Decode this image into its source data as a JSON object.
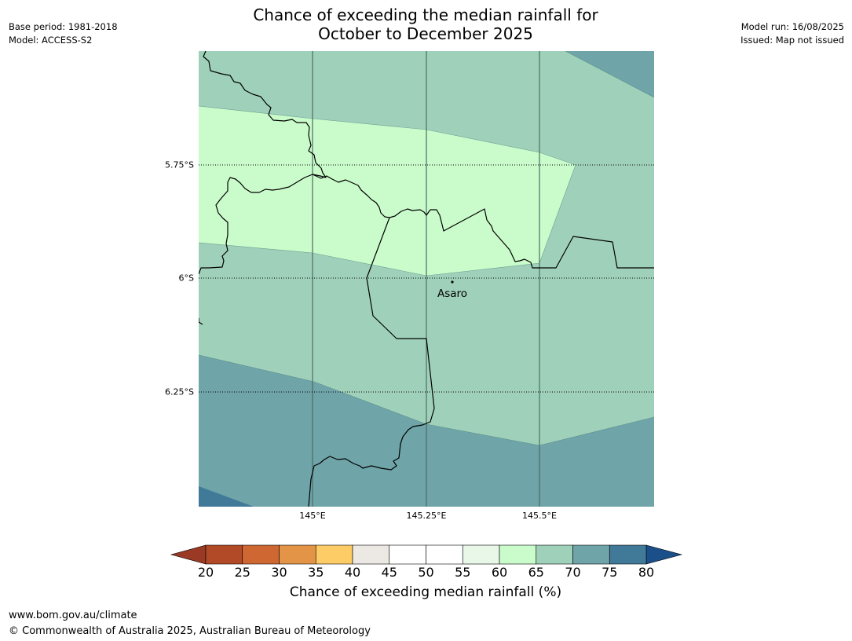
{
  "header": {
    "title_line1": "Chance of exceeding the median rainfall for",
    "title_line2": "October to December 2025",
    "base_period": "Base period: 1981-2018",
    "model": "Model: ACCESS-S2",
    "model_run": "Model run: 16/08/2025",
    "issued": "Issued: Map not issued"
  },
  "map": {
    "latitude_labels": [
      "5.75°S",
      "6°S",
      "6.25°S"
    ],
    "longitude_labels": [
      "145°E",
      "145.25°E",
      "145.5°E"
    ],
    "place": {
      "name": "Asaro"
    },
    "colors": {
      "band_60_65": "#cafccb",
      "band_65_70": "#9fd1ba",
      "band_70_75": "#6fa4a8",
      "band_75_80": "#417998"
    }
  },
  "colorbar": {
    "title": "Chance of exceeding median rainfall (%)",
    "ticks": [
      "20",
      "25",
      "30",
      "35",
      "40",
      "45",
      "50",
      "55",
      "60",
      "65",
      "70",
      "75",
      "80"
    ],
    "below_color": "#9b3a24",
    "above_color": "#1a4f89",
    "colors": [
      "#b34a27",
      "#cf6733",
      "#e39446",
      "#fdcc67",
      "#ece8e4",
      "#ffffff",
      "#ffffff",
      "#e9f7e8",
      "#cafccb",
      "#9fd1ba",
      "#6fa4a8",
      "#417998"
    ]
  },
  "footer": {
    "url": "www.bom.gov.au/climate",
    "copyright": "© Commonwealth of Australia 2025, Australian Bureau of Meteorology"
  }
}
